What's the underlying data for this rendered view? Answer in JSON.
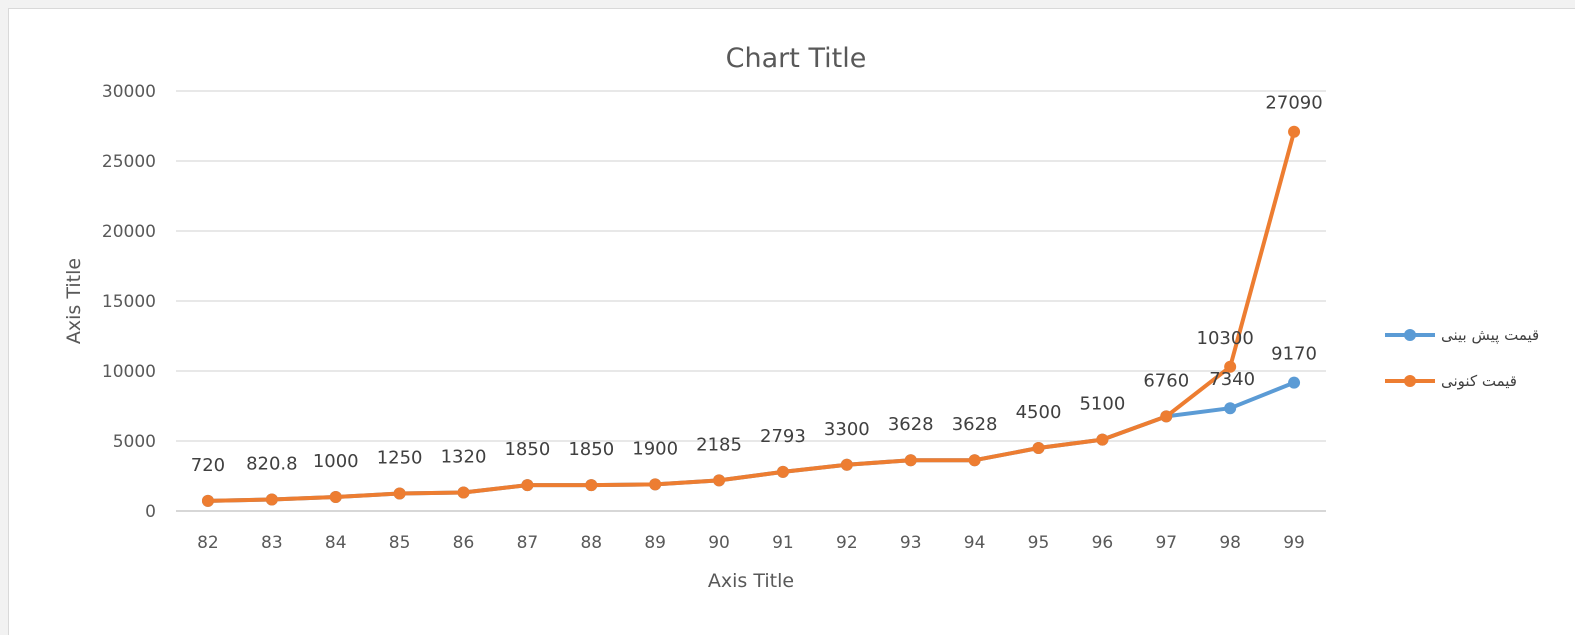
{
  "chart_data": {
    "type": "line",
    "title": "Chart Title",
    "xlabel": "Axis Title",
    "ylabel": "Axis Title",
    "ylim": [
      0,
      30000
    ],
    "yticks": [
      "0",
      "5000",
      "10000",
      "15000",
      "20000",
      "25000",
      "30000"
    ],
    "categories": [
      "82",
      "83",
      "84",
      "85",
      "86",
      "87",
      "88",
      "89",
      "90",
      "91",
      "92",
      "93",
      "94",
      "95",
      "96",
      "97",
      "98",
      "99"
    ],
    "grid": true,
    "legend_position": "right",
    "series": [
      {
        "name": "قیمت پیش بینی",
        "color": "#5b9bd5",
        "values": [
          720,
          820.8,
          1000,
          1250,
          1320,
          1850,
          1850,
          1900,
          2185,
          2793,
          3300,
          3628,
          3628,
          4500,
          5100,
          6760,
          7340,
          9170
        ]
      },
      {
        "name": "قیمت کنونی",
        "color": "#ed7d31",
        "values": [
          720,
          820.8,
          1000,
          1250,
          1320,
          1850,
          1850,
          1900,
          2185,
          2793,
          3300,
          3628,
          3628,
          4500,
          5100,
          6760,
          10300,
          27090
        ]
      }
    ],
    "data_labels": [
      "720",
      "820.8",
      "1000",
      "1250",
      "1320",
      "1850",
      "1850",
      "1900",
      "2185",
      "2793",
      "3300",
      "3628",
      "3628",
      "4500",
      "5100",
      "6760",
      "7340",
      "9170",
      "10300",
      "27090"
    ]
  }
}
